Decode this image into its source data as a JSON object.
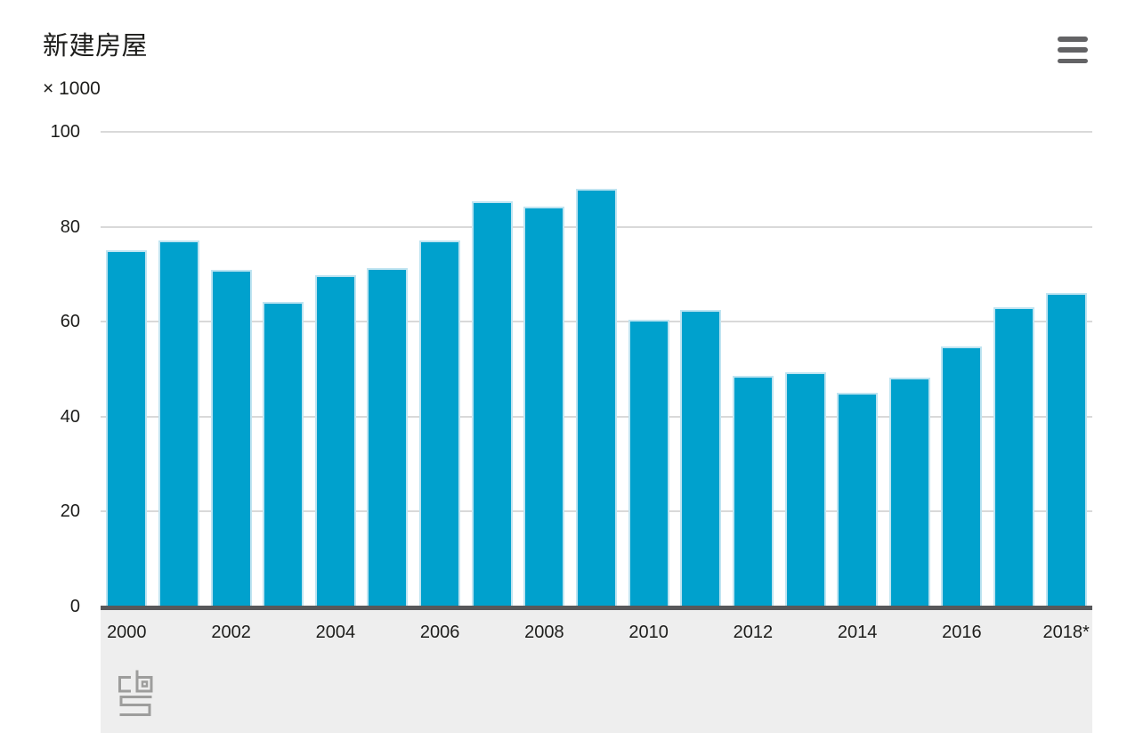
{
  "header": {
    "title": "新建房屋",
    "unit_label": "× 1000",
    "menu_icon": "hamburger-menu-icon"
  },
  "chart_data": {
    "type": "bar",
    "title": "新建房屋",
    "unit": "× 1000",
    "categories": [
      "2000",
      "2001",
      "2002",
      "2003",
      "2004",
      "2005",
      "2006",
      "2007",
      "2008",
      "2009",
      "2010",
      "2011",
      "2012",
      "2013",
      "2014",
      "2015",
      "2016",
      "2017",
      "2018*"
    ],
    "values": [
      75.0,
      77.1,
      71.0,
      64.1,
      69.8,
      71.3,
      77.1,
      85.3,
      84.2,
      88.0,
      60.5,
      62.4,
      48.6,
      49.3,
      45.0,
      48.3,
      54.7,
      63.0,
      66.0
    ],
    "xlabel": "",
    "ylabel": "× 1000",
    "ylim": [
      0,
      100
    ],
    "yticks": [
      100,
      80,
      60,
      40,
      20,
      0
    ],
    "xticks_shown": [
      "2000",
      "2002",
      "2004",
      "2006",
      "2008",
      "2010",
      "2012",
      "2014",
      "2016",
      "2018*"
    ],
    "grid": true,
    "legend": "none",
    "bar_color": "#00a1cd"
  },
  "footer": {
    "logo": "cbs-logo"
  },
  "colors": {
    "bar": "#00a1cd",
    "bar_border": "#bfe4f1",
    "grid_line": "#d9d9d9",
    "axis_line": "#58585a",
    "footer_bg": "#eeeeee",
    "text": "#1d1d1b",
    "icon": "#636365",
    "logo": "#9d9d9c"
  }
}
